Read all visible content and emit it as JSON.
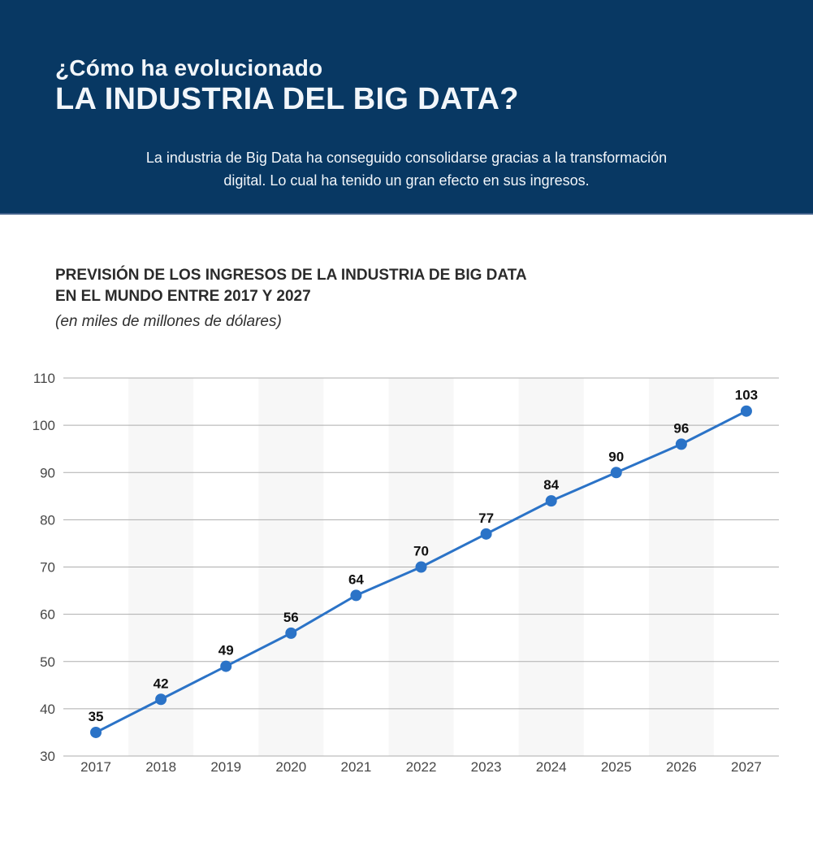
{
  "header": {
    "title_line1": "¿Cómo ha evolucionado",
    "title_line2": "LA INDUSTRIA DEL BIG DATA?",
    "subtitle_line1": "La industria de Big Data ha conseguido consolidarse gracias a la transformación",
    "subtitle_line2": "digital. Lo cual ha tenido un gran efecto en sus ingresos.",
    "background_color": "#083863",
    "text_color": "#f2f6fa"
  },
  "chart_section": {
    "title_line1": "PREVISIÓN DE LOS INGRESOS DE LA INDUSTRIA DE BIG DATA",
    "title_line2": "EN EL MUNDO ENTRE 2017 Y 2027",
    "unit_note": "(en miles de millones de dólares)"
  },
  "chart_data": {
    "type": "line",
    "title": "PREVISIÓN DE LOS INGRESOS DE LA INDUSTRIA DE BIG DATA EN EL MUNDO ENTRE 2017 Y 2027",
    "subtitle": "(en miles de millones de dólares)",
    "categories": [
      "2017",
      "2018",
      "2019",
      "2020",
      "2021",
      "2022",
      "2023",
      "2024",
      "2025",
      "2026",
      "2027"
    ],
    "values": [
      35,
      42,
      49,
      56,
      64,
      70,
      77,
      84,
      90,
      96,
      103
    ],
    "xlabel": "",
    "ylabel": "",
    "ylim": [
      30,
      110
    ],
    "ytick_step": 10,
    "yticks": [
      30,
      40,
      50,
      60,
      70,
      80,
      90,
      100,
      110
    ],
    "grid": "horizontal",
    "legend": "none",
    "data_labels": true,
    "band_years": [
      "2018",
      "2020",
      "2022",
      "2024",
      "2026"
    ],
    "colors": {
      "line": "#2b73c7",
      "marker": "#2b73c7",
      "band": "#f7f7f7",
      "grid": "#adadad",
      "tick_text": "#474747",
      "data_label_text": "#111111"
    }
  }
}
